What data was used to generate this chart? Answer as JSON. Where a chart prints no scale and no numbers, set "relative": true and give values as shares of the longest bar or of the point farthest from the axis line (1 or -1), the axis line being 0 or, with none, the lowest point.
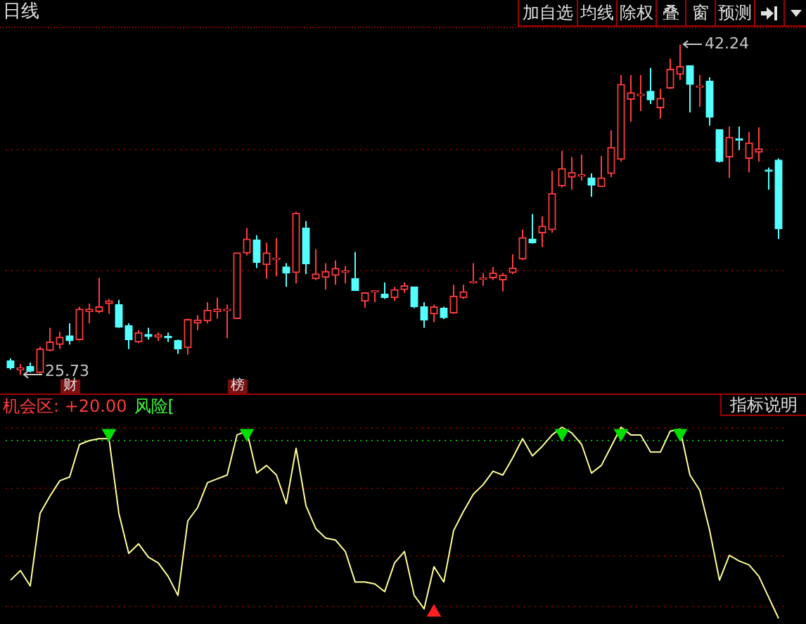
{
  "chart_data": [
    {
      "type": "candlestick",
      "title": "日线",
      "categories": [
        null,
        null,
        null,
        null,
        null,
        null,
        null,
        null,
        null,
        null,
        null,
        null,
        null,
        null,
        null,
        null,
        null,
        null,
        null,
        null,
        null,
        null,
        null,
        null,
        null,
        null,
        null,
        null,
        null,
        null,
        null,
        null,
        null,
        null,
        null,
        null,
        null,
        null,
        null,
        null,
        null,
        null,
        null,
        null,
        null,
        null,
        null,
        null,
        null,
        null,
        null,
        null,
        null,
        null,
        null,
        null,
        null,
        null,
        null,
        null,
        null,
        null,
        null,
        null,
        null,
        null,
        null,
        null,
        null,
        null,
        null,
        null,
        null,
        null,
        null,
        null,
        null,
        null,
        null
      ],
      "ohlc": [
        [
          26.43,
          26.55,
          25.99,
          26.08
        ],
        [
          25.97,
          26.27,
          25.73,
          26.08
        ],
        [
          26.15,
          26.34,
          25.85,
          25.92
        ],
        [
          25.85,
          27.14,
          25.8,
          27.02
        ],
        [
          26.95,
          28.08,
          26.9,
          27.37
        ],
        [
          27.25,
          27.89,
          27.02,
          27.61
        ],
        [
          27.68,
          28.31,
          27.25,
          27.44
        ],
        [
          27.49,
          29.13,
          27.44,
          29.01
        ],
        [
          28.89,
          29.29,
          28.31,
          29.01
        ],
        [
          28.89,
          30.58,
          28.82,
          29.13
        ],
        [
          29.29,
          29.52,
          28.78,
          29.43
        ],
        [
          29.24,
          29.48,
          28.08,
          28.12
        ],
        [
          28.19,
          28.31,
          27.02,
          27.49
        ],
        [
          27.37,
          27.96,
          27.31,
          27.84
        ],
        [
          27.75,
          28.08,
          27.49,
          27.65
        ],
        [
          27.61,
          27.84,
          27.42,
          27.73
        ],
        [
          27.63,
          27.84,
          27.37,
          27.58
        ],
        [
          27.44,
          27.49,
          26.78,
          27.02
        ],
        [
          27.09,
          28.54,
          26.74,
          28.5
        ],
        [
          28.31,
          28.71,
          27.96,
          28.47
        ],
        [
          28.43,
          29.36,
          28.31,
          28.96
        ],
        [
          28.89,
          29.59,
          28.54,
          29.01
        ],
        [
          28.94,
          29.24,
          27.56,
          29.01
        ],
        [
          28.54,
          31.82,
          28.54,
          31.82
        ],
        [
          31.82,
          33.07,
          31.7,
          32.52
        ],
        [
          32.47,
          32.71,
          31.07,
          31.35
        ],
        [
          31.24,
          32.33,
          30.54,
          31.82
        ],
        [
          31.5,
          32.57,
          30.65,
          31.57
        ],
        [
          31.12,
          31.31,
          30.13,
          30.82
        ],
        [
          30.84,
          33.88,
          30.3,
          33.81
        ],
        [
          33.07,
          33.42,
          30.77,
          31.28
        ],
        [
          30.54,
          32.01,
          30.47,
          30.77
        ],
        [
          30.61,
          31.31,
          29.99,
          30.89
        ],
        [
          30.7,
          31.45,
          30.23,
          31.05
        ],
        [
          30.85,
          31.17,
          30.3,
          30.91
        ],
        [
          30.54,
          31.87,
          29.95,
          29.95
        ],
        [
          29.41,
          29.83,
          29.08,
          29.83
        ],
        [
          29.87,
          29.92,
          29.36,
          29.92
        ],
        [
          29.76,
          30.35,
          29.52,
          29.59
        ],
        [
          29.59,
          30.13,
          29.43,
          29.99
        ],
        [
          29.99,
          30.35,
          29.83,
          30.18
        ],
        [
          30.13,
          30.13,
          29.06,
          29.13
        ],
        [
          29.13,
          29.36,
          28.08,
          28.47
        ],
        [
          28.78,
          29.24,
          28.36,
          29.13
        ],
        [
          29.06,
          29.13,
          28.52,
          28.59
        ],
        [
          28.82,
          30.23,
          28.78,
          29.66
        ],
        [
          29.59,
          30.23,
          29.52,
          29.88
        ],
        [
          30.33,
          31.31,
          30.28,
          30.38
        ],
        [
          30.5,
          30.82,
          30.18,
          30.56
        ],
        [
          30.58,
          31.12,
          30.47,
          30.82
        ],
        [
          30.47,
          30.82,
          29.9,
          30.72
        ],
        [
          30.84,
          31.75,
          30.77,
          31.07
        ],
        [
          31.52,
          32.99,
          31.47,
          32.59
        ],
        [
          32.52,
          33.77,
          32.29,
          32.33
        ],
        [
          32.83,
          33.65,
          32.12,
          33.16
        ],
        [
          32.99,
          35.92,
          32.83,
          34.79
        ],
        [
          35.17,
          36.93,
          35.1,
          36.04
        ],
        [
          35.61,
          36.62,
          34.98,
          35.85
        ],
        [
          35.66,
          36.74,
          35.45,
          35.72
        ],
        [
          35.57,
          35.8,
          34.63,
          35.21
        ],
        [
          35.14,
          36.67,
          35.14,
          35.57
        ],
        [
          35.8,
          37.95,
          35.61,
          37.09
        ],
        [
          36.51,
          40.72,
          36.39,
          40.25
        ],
        [
          39.5,
          40.72,
          38.37,
          39.83
        ],
        [
          39.69,
          40.72,
          38.92,
          39.74
        ],
        [
          39.9,
          41.07,
          39.27,
          39.48
        ],
        [
          39.08,
          40.02,
          38.54,
          39.55
        ],
        [
          40.06,
          41.54,
          40.02,
          41.0
        ],
        [
          40.76,
          42.24,
          40.48,
          41.14
        ],
        [
          41.19,
          41.19,
          38.85,
          40.25
        ],
        [
          40.11,
          40.72,
          39.13,
          40.16
        ],
        [
          40.41,
          40.6,
          38.19,
          38.61
        ],
        [
          37.98,
          37.98,
          36.34,
          36.39
        ],
        [
          36.62,
          38.14,
          35.57,
          37.6
        ],
        [
          37.51,
          38.14,
          36.97,
          37.46
        ],
        [
          36.55,
          37.86,
          35.85,
          37.32
        ],
        [
          36.86,
          38.1,
          36.39,
          37.02
        ],
        [
          35.95,
          36.09,
          34.98,
          35.9
        ],
        [
          36.46,
          36.55,
          32.52,
          33.04
        ]
      ],
      "colors": [
        "#54ffff",
        "#ff3c3c",
        "#54ffff",
        "#ff3c3c",
        "#ff3c3c",
        "#ff3c3c",
        "#54ffff",
        "#ff3c3c",
        "#ff3c3c",
        "#ff3c3c",
        "#ff3c3c",
        "#54ffff",
        "#54ffff",
        "#ff3c3c",
        "#54ffff",
        "#ff3c3c",
        "#54ffff",
        "#54ffff",
        "#ff3c3c",
        "#ff3c3c",
        "#ff3c3c",
        "#ff3c3c",
        "#ff3c3c",
        "#ff3c3c",
        "#ff3c3c",
        "#54ffff",
        "#ff3c3c",
        "#ff3c3c",
        "#54ffff",
        "#ff3c3c",
        "#54ffff",
        "#ff3c3c",
        "#ff3c3c",
        "#ff3c3c",
        "#ff3c3c",
        "#54ffff",
        "#ff3c3c",
        "#ff3c3c",
        "#54ffff",
        "#ff3c3c",
        "#ff3c3c",
        "#54ffff",
        "#54ffff",
        "#ff3c3c",
        "#54ffff",
        "#ff3c3c",
        "#ff3c3c",
        "#ff3c3c",
        "#ff3c3c",
        "#ff3c3c",
        "#ff3c3c",
        "#ff3c3c",
        "#ff3c3c",
        "#54ffff",
        "#ff3c3c",
        "#ff3c3c",
        "#ff3c3c",
        "#ff3c3c",
        "#ff3c3c",
        "#54ffff",
        "#ff3c3c",
        "#ff3c3c",
        "#ff3c3c",
        "#ff3c3c",
        "#ff3c3c",
        "#54ffff",
        "#ff3c3c",
        "#ff3c3c",
        "#ff3c3c",
        "#54ffff",
        "#ff3c3c",
        "#54ffff",
        "#54ffff",
        "#ff3c3c",
        "#54ffff",
        "#ff3c3c",
        "#ff3c3c",
        "#54ffff",
        "#54ffff"
      ],
      "ref_lines": [
        {
          "axis": "y",
          "value": 36.95,
          "color": "#7a0000",
          "line_style": "dotted"
        },
        {
          "axis": "y",
          "value": 30.91,
          "color": "#7a0000",
          "line_style": "dotted"
        }
      ],
      "annotations": [
        "42.24",
        "25.73",
        "财",
        "榜",
        "加自选",
        "均线",
        "除权",
        "叠",
        "窗",
        "预测"
      ]
    },
    {
      "type": "line",
      "categories": [
        null,
        null,
        null,
        null,
        null,
        null,
        null,
        null,
        null,
        null,
        null,
        null,
        null,
        null,
        null,
        null,
        null,
        null,
        null,
        null,
        null,
        null,
        null,
        null,
        null,
        null,
        null,
        null,
        null,
        null,
        null,
        null,
        null,
        null,
        null,
        null,
        null,
        null,
        null,
        null,
        null,
        null,
        null,
        null,
        null,
        null,
        null,
        null,
        null,
        null,
        null,
        null,
        null,
        null,
        null,
        null,
        null,
        null,
        null,
        null,
        null,
        null,
        null,
        null,
        null,
        null,
        null,
        null,
        null,
        null,
        null,
        null,
        null,
        null,
        null,
        null,
        null,
        null,
        null
      ],
      "relative": true,
      "series": [
        {
          "color": "#ffff99",
          "values": [
            0.2,
            0.25,
            0.17,
            0.55,
            0.64,
            0.72,
            0.74,
            0.91,
            0.93,
            0.94,
            0.94,
            0.55,
            0.34,
            0.39,
            0.32,
            0.29,
            0.22,
            0.12,
            0.51,
            0.58,
            0.71,
            0.73,
            0.75,
            0.96,
            0.98,
            0.76,
            0.8,
            0.75,
            0.6,
            0.89,
            0.59,
            0.47,
            0.42,
            0.41,
            0.35,
            0.19,
            0.19,
            0.18,
            0.14,
            0.29,
            0.35,
            0.12,
            0.05,
            0.27,
            0.19,
            0.46,
            0.56,
            0.65,
            0.7,
            0.77,
            0.75,
            0.84,
            0.94,
            0.85,
            0.9,
            0.96,
            1.0,
            0.97,
            0.91,
            0.76,
            0.8,
            0.9,
            1.0,
            0.96,
            0.96,
            0.87,
            0.87,
            0.98,
            0.99,
            0.75,
            0.67,
            0.46,
            0.2,
            0.33,
            0.3,
            0.28,
            0.22,
            0.11,
            0
          ]
        },
        {
          "type": "scatter",
          "color": "#00e000",
          "marker": "triangle",
          "values": [
            null,
            null,
            null,
            null,
            null,
            null,
            null,
            null,
            null,
            null,
            0.96,
            null,
            null,
            null,
            null,
            null,
            null,
            null,
            null,
            null,
            null,
            null,
            null,
            null,
            0.96,
            null,
            null,
            null,
            null,
            null,
            null,
            null,
            null,
            null,
            null,
            null,
            null,
            null,
            null,
            null,
            null,
            null,
            null,
            null,
            null,
            null,
            null,
            null,
            null,
            null,
            null,
            null,
            null,
            null,
            null,
            null,
            0.96,
            null,
            null,
            null,
            null,
            null,
            0.96,
            null,
            null,
            null,
            null,
            null,
            0.96,
            null,
            null,
            null,
            null,
            null,
            null,
            null,
            null,
            null,
            null
          ]
        },
        {
          "type": "scatter",
          "color": "#ff2020",
          "marker": "triangle",
          "values": [
            null,
            null,
            null,
            null,
            null,
            null,
            null,
            null,
            null,
            null,
            null,
            null,
            null,
            null,
            null,
            null,
            null,
            null,
            null,
            null,
            null,
            null,
            null,
            null,
            null,
            null,
            null,
            null,
            null,
            null,
            null,
            null,
            null,
            null,
            null,
            null,
            null,
            null,
            null,
            null,
            null,
            null,
            null,
            0.04,
            null,
            null,
            null,
            null,
            null,
            null,
            null,
            null,
            null,
            null,
            null,
            null,
            null,
            null,
            null,
            null,
            null,
            null,
            null,
            null,
            null,
            null,
            null,
            null,
            null,
            null,
            null,
            null,
            null,
            null,
            null,
            null,
            null,
            null,
            null
          ]
        }
      ],
      "ref_lines": [
        {
          "axis": "y",
          "value": 1.0,
          "color": "#7a0000",
          "line_style": "dotted"
        },
        {
          "axis": "y",
          "value": 0.93,
          "color": "#00b000",
          "line_style": "dotted"
        },
        {
          "axis": "y",
          "value": 0.68,
          "color": "#7a0000",
          "line_style": "dotted"
        },
        {
          "axis": "y",
          "value": 0.33,
          "color": "#7a0000",
          "line_style": "dotted"
        },
        {
          "axis": "y",
          "value": 0.06,
          "color": "#7a0000",
          "line_style": "dotted"
        }
      ],
      "annotations": [
        "机会区: +20.00",
        "风险[",
        "指标说明"
      ]
    }
  ]
}
